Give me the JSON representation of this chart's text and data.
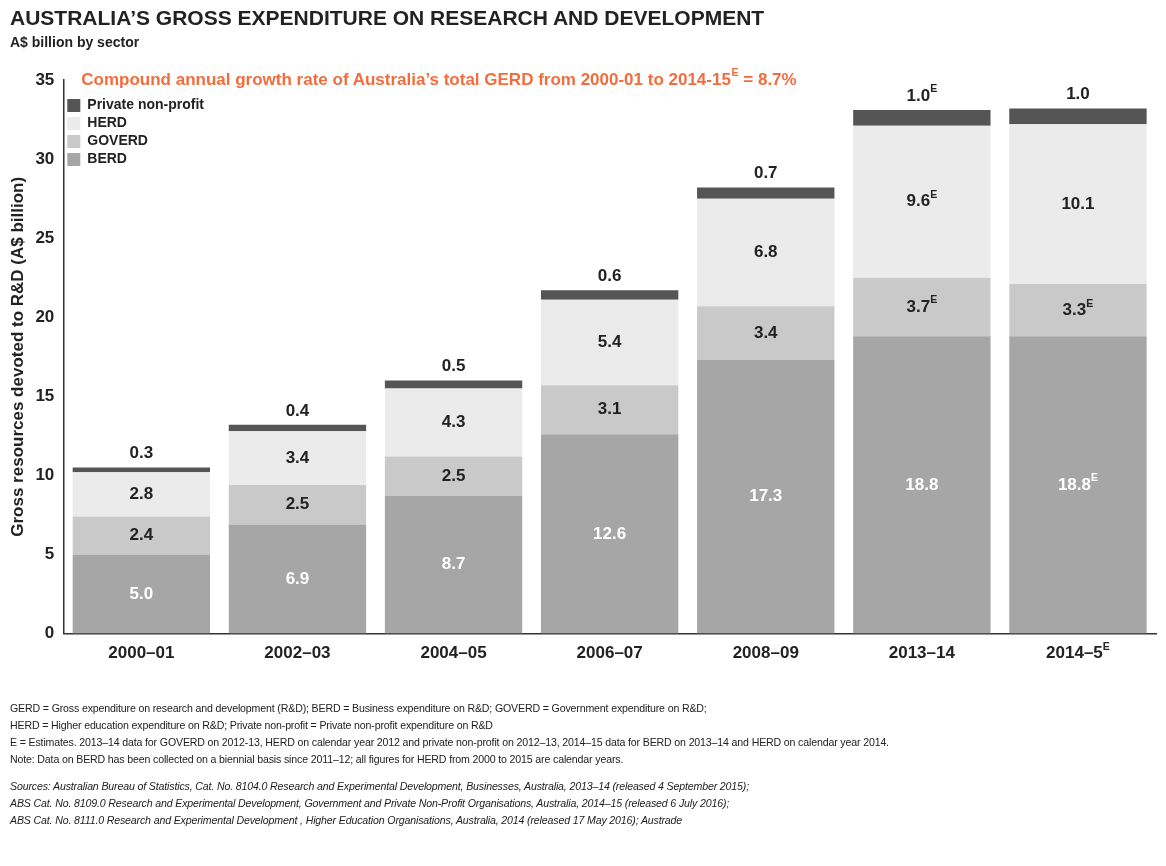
{
  "chart_data": {
    "type": "bar",
    "title": "AUSTRALIA’S GROSS EXPENDITURE ON RESEARCH AND DEVELOPMENT",
    "subtitle": "A$ billion by sector",
    "ylabel": "Gross resources devoted to R&D (A$ billion)",
    "categories": [
      "2000–01",
      "2002–03",
      "2004–05",
      "2006–07",
      "2008–09",
      "2013–14",
      "2014–5$^{E}$"
    ],
    "stacked": true,
    "ylim": [
      0,
      35
    ],
    "yticks": [
      0,
      5,
      10,
      15,
      20,
      25,
      30,
      35
    ],
    "grid": false,
    "legend": "top left",
    "data_labels": true,
    "series": [
      {
        "name": "BERD",
        "color": "#a6a6a6",
        "values": [
          5.0,
          6.9,
          8.7,
          12.6,
          17.3,
          18.8,
          18.8
        ],
        "value_labels": [
          "5.0",
          "6.9",
          "8.7",
          "12.6",
          "17.3",
          "18.8",
          "18.8$^{E}$"
        ]
      },
      {
        "name": "GOVERD",
        "color": "#c9c9c9",
        "values": [
          2.4,
          2.5,
          2.5,
          3.1,
          3.4,
          3.7,
          3.3
        ],
        "value_labels": [
          "2.4",
          "2.5",
          "2.5",
          "3.1",
          "3.4",
          "3.7$^{E}$",
          "3.3$^{E}$"
        ]
      },
      {
        "name": "HERD",
        "color": "#ebebeb",
        "values": [
          2.8,
          3.4,
          4.3,
          5.4,
          6.8,
          9.6,
          10.1
        ],
        "value_labels": [
          "2.8",
          "3.4",
          "4.3",
          "5.4",
          "6.8",
          "9.6$^{E}$",
          "10.1"
        ]
      },
      {
        "name": "Private non-profit",
        "color": "#555555",
        "values": [
          0.3,
          0.4,
          0.5,
          0.6,
          0.7,
          1.0,
          1.0
        ],
        "value_labels": [
          "0.3",
          "0.4",
          "0.5",
          "0.6",
          "0.7",
          "1.0$^{E}$",
          "1.0"
        ]
      }
    ],
    "annotations": [
      "Compound annual growth rate of Australia’s total GERD from 2000-01 to 2014-15$^{E}$ = 8.7%",
      "GERD = Gross expenditure on research and development (R&D); BERD = Business expenditure on R&D; GOVERD = Government expenditure on R&D;",
      "HERD = Higher education expenditure on R&D; Private non-profit = Private non-profit expenditure on R&D",
      "E = Estimates. 2013–14 data for GOVERD on 2012-13, HERD on calendar year 2012 and private non-profit on 2012–13, 2014–15 data for BERD on 2013–14 and HERD on calendar year 2014.",
      "Note: Data on BERD has been collected on a biennial basis since 2011–12; all figures for HERD from 2000 to 2015 are calendar years.",
      "Sources: Australian Bureau of Statistics, Cat. No. 8104.0 Research and Experimental Development, Businesses, Australia, 2013–14 (released 4 September 2015);",
      "ABS Cat. No. 8109.0 Research and Experimental Development, Government and Private Non-Profit Organisations, Australia, 2014–15 (released 6 July 2016);",
      "ABS Cat. No. 8111.0 Research and Experimental Development , Higher Education Organisations, Australia, 2014 (released 17 May 2016); Austrade"
    ]
  }
}
